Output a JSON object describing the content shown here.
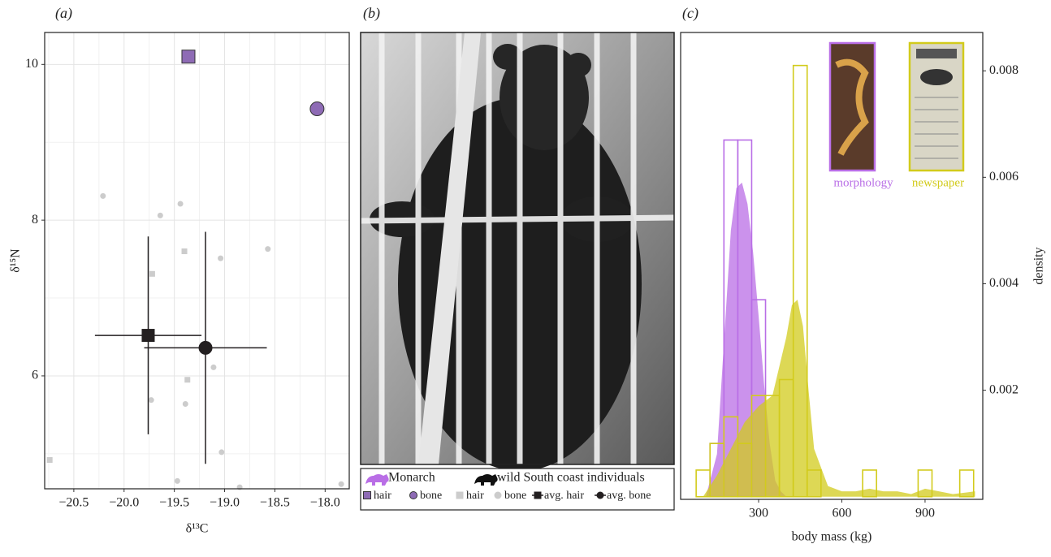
{
  "chart_data": [
    {
      "type": "scatter",
      "panel": "(a)",
      "xlabel": "δ¹³C",
      "ylabel": "δ¹⁵N",
      "xlim": [
        -20.79,
        -17.76
      ],
      "ylim": [
        4.55,
        10.41
      ],
      "xticks": [
        {
          "value": -20.5,
          "label": "−20.5"
        },
        {
          "value": -20.0,
          "label": "−20.0"
        },
        {
          "value": -19.5,
          "label": "−19.5"
        },
        {
          "value": -19.0,
          "label": "−19.0"
        },
        {
          "value": -18.5,
          "label": "−18.5"
        },
        {
          "value": -18.0,
          "label": "−18.0"
        }
      ],
      "yticks": [
        6,
        8,
        10
      ],
      "x_minor_grid": [
        -20.75,
        -20.25,
        -19.75,
        -19.25,
        -18.75,
        -18.25
      ],
      "y_minor_grid": [
        5,
        7,
        9
      ],
      "grid": true,
      "legend_groups": [
        "Monarch",
        "wild South coast individuals"
      ],
      "series": [
        {
          "name": "hair",
          "group": 0,
          "marker": "square",
          "color": "#8e6bb5",
          "x": [
            -19.36
          ],
          "values": [
            10.1
          ]
        },
        {
          "name": "bone",
          "group": 0,
          "marker": "circle",
          "color": "#8e6bb5",
          "x": [
            -18.08
          ],
          "values": [
            9.43
          ]
        },
        {
          "name": "hair",
          "group": 1,
          "marker": "square",
          "color": "#cccccc",
          "x": [
            -20.74,
            -19.72,
            -19.4,
            -19.37
          ],
          "values": [
            4.92,
            7.31,
            7.6,
            5.95
          ]
        },
        {
          "name": "bone",
          "group": 1,
          "marker": "circle",
          "color": "#cccccc",
          "x": [
            -20.21,
            -19.64,
            -19.44,
            -19.04,
            -18.57,
            -19.11,
            -19.73,
            -19.39,
            -19.03,
            -19.47,
            -18.85,
            -17.84
          ],
          "values": [
            8.31,
            8.06,
            8.21,
            7.51,
            7.63,
            6.11,
            5.69,
            5.64,
            5.02,
            4.65,
            4.57,
            4.61
          ]
        },
        {
          "name": "avg. hair",
          "group": 1,
          "marker": "square",
          "color": "#231f20",
          "x": [
            -19.76
          ],
          "values": [
            6.52
          ],
          "x_err": [
            0.53
          ],
          "y_err": [
            1.27
          ]
        },
        {
          "name": "avg. bone",
          "group": 1,
          "marker": "circle",
          "color": "#231f20",
          "x": [
            -19.19
          ],
          "values": [
            6.36
          ],
          "x_err": [
            0.61
          ],
          "y_err": [
            1.49
          ]
        }
      ]
    },
    {
      "type": "image",
      "panel": "(b)"
    },
    {
      "type": "histogram",
      "panel": "(c)",
      "xlabel": "body mass (kg)",
      "ylabel": "density",
      "xlim": [
        19,
        1108
      ],
      "ylim": [
        -5e-05,
        0.00872
      ],
      "xticks": [
        300,
        600,
        900
      ],
      "yticks": [
        0.002,
        0.004,
        0.006,
        0.008
      ],
      "grid": false,
      "series": [
        {
          "name": "morphology",
          "color": "#b96ee6",
          "bins": [
            125,
            175,
            225,
            275,
            325
          ],
          "values": [
            0.001,
            0.0067,
            0.0067,
            0.0037
          ],
          "density_x": [
            110,
            150,
            180,
            200,
            220,
            240,
            260,
            280,
            300,
            320,
            340,
            360,
            380,
            400
          ],
          "density": [
            0,
            0.0008,
            0.0033,
            0.005,
            0.0058,
            0.0059,
            0.0055,
            0.0046,
            0.0034,
            0.0021,
            0.001,
            0.0003,
            0.0001,
            0
          ]
        },
        {
          "name": "newspaper",
          "color": "#d2cb1c",
          "bins": [
            75,
            125,
            175,
            225,
            275,
            325,
            375,
            425,
            475,
            525,
            575,
            625,
            675,
            725,
            775,
            825,
            875,
            925,
            975,
            1025,
            1075
          ],
          "values": [
            0.0005,
            0.001,
            0.0015,
            0.001,
            0.0019,
            0.0019,
            0.0022,
            0.0081,
            0.0005,
            0,
            0,
            0,
            0.0005,
            0,
            0,
            0,
            0.0005,
            0,
            0,
            0.0005
          ],
          "density_x": [
            100,
            150,
            200,
            250,
            300,
            350,
            400,
            420,
            440,
            460,
            480,
            500,
            550,
            600,
            650,
            700,
            750,
            800,
            850,
            900,
            950,
            1000,
            1050,
            1080
          ],
          "density": [
            0,
            0.0004,
            0.0009,
            0.0014,
            0.0017,
            0.0019,
            0.003,
            0.0036,
            0.0037,
            0.0032,
            0.002,
            0.0009,
            0.0002,
            0.0001,
            0.0001,
            0.00015,
            0.0001,
            0.0001,
            5e-05,
            0.00015,
            0.0001,
            5e-05,
            8e-05,
            0.0001
          ]
        }
      ]
    }
  ]
}
